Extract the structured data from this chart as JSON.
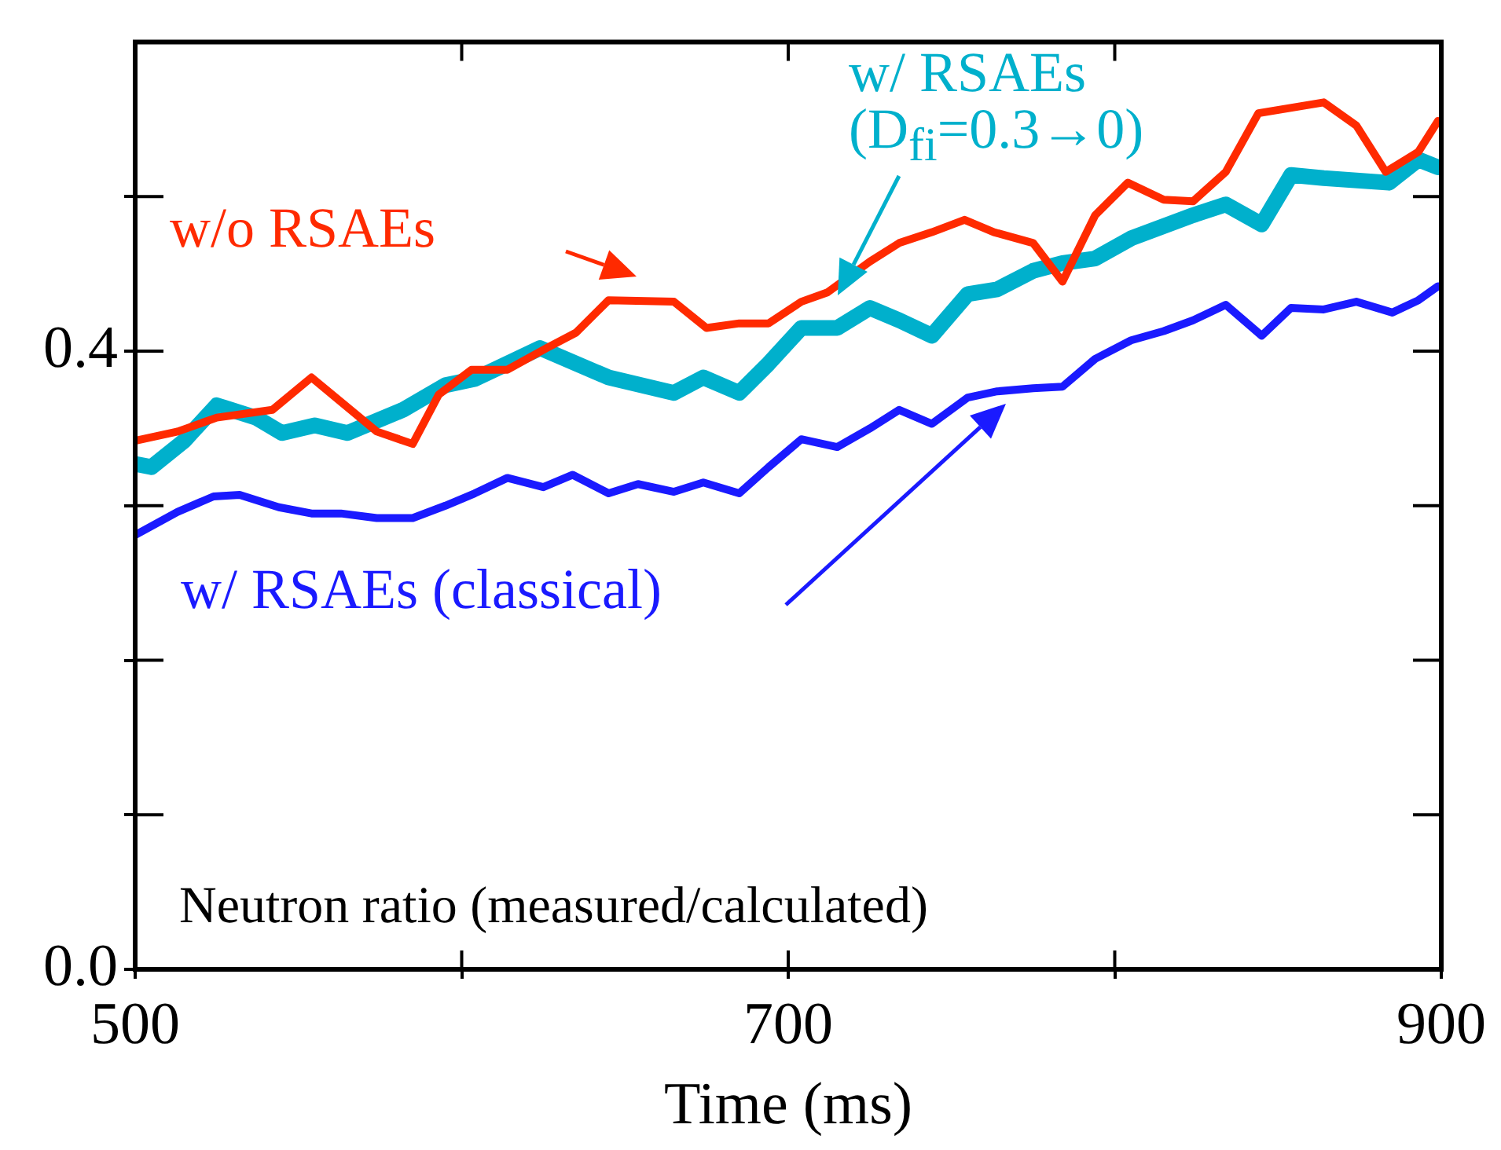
{
  "chart_data": {
    "type": "line",
    "xlabel": "Time (ms)",
    "annotations": [
      "Neutron ratio (measured/calculated)"
    ],
    "xlim": [
      500,
      900
    ],
    "ylim": [
      0,
      0.6
    ],
    "xticks": [
      500,
      {
        "value": 600,
        "label": null
      },
      700,
      {
        "value": 800,
        "label": null
      },
      900
    ],
    "yticks": [
      {
        "value": 0,
        "label": "0.0"
      },
      {
        "value": 0.1,
        "label": null
      },
      {
        "value": 0.2,
        "label": null
      },
      {
        "value": 0.3,
        "label": null
      },
      0.4,
      {
        "value": 0.5,
        "label": null
      }
    ],
    "grid": false,
    "legend": false,
    "marker": "none",
    "line_style": "solid",
    "series": [
      {
        "name": "w/o RSAEs",
        "color": "#ff2a00",
        "x": [
          500,
          513,
          525,
          542,
          554,
          574,
          585,
          593,
          603,
          614,
          626,
          635,
          645,
          665,
          675,
          685,
          694,
          704,
          712,
          725,
          734,
          744,
          754,
          763,
          775,
          784,
          794,
          804,
          815,
          824,
          834,
          844,
          864,
          874,
          883,
          893,
          899
        ],
        "values": [
          0.342,
          0.348,
          0.357,
          0.362,
          0.383,
          0.348,
          0.34,
          0.372,
          0.388,
          0.388,
          0.402,
          0.412,
          0.433,
          0.432,
          0.415,
          0.418,
          0.418,
          0.432,
          0.438,
          0.458,
          0.47,
          0.477,
          0.485,
          0.477,
          0.47,
          0.445,
          0.488,
          0.509,
          0.498,
          0.497,
          0.516,
          0.554,
          0.561,
          0.546,
          0.516,
          0.529,
          0.549
        ]
      },
      {
        "name": "w/ RSAEs (D$_{fi}$=0.3→0)",
        "color": "#00b0cc",
        "x": [
          500,
          505,
          515,
          525,
          537,
          545,
          555,
          565,
          582,
          595,
          604,
          624,
          645,
          665,
          674,
          685,
          694,
          704,
          715,
          725,
          734,
          744,
          755,
          764,
          775,
          784,
          794,
          805,
          824,
          834,
          845,
          854,
          864,
          884,
          893,
          899
        ],
        "values": [
          0.327,
          0.325,
          0.342,
          0.365,
          0.357,
          0.347,
          0.352,
          0.347,
          0.362,
          0.378,
          0.382,
          0.402,
          0.383,
          0.373,
          0.383,
          0.373,
          0.392,
          0.415,
          0.415,
          0.428,
          0.42,
          0.41,
          0.437,
          0.44,
          0.452,
          0.457,
          0.46,
          0.473,
          0.488,
          0.495,
          0.482,
          0.514,
          0.512,
          0.509,
          0.524,
          0.519
        ]
      },
      {
        "name": "w/ RSAEs (classical)",
        "color": "#1a1aff",
        "x": [
          500,
          513,
          524,
          532,
          544,
          554,
          563,
          574,
          585,
          595,
          604,
          614,
          625,
          634,
          645,
          654,
          665,
          674,
          685,
          694,
          704,
          715,
          725,
          734,
          744,
          755,
          764,
          775,
          784,
          794,
          805,
          815,
          824,
          834,
          845,
          854,
          864,
          874,
          885,
          893,
          899
        ],
        "values": [
          0.281,
          0.296,
          0.306,
          0.307,
          0.299,
          0.295,
          0.295,
          0.292,
          0.292,
          0.3,
          0.308,
          0.318,
          0.312,
          0.32,
          0.308,
          0.314,
          0.309,
          0.315,
          0.308,
          0.325,
          0.343,
          0.338,
          0.35,
          0.362,
          0.353,
          0.37,
          0.374,
          0.376,
          0.377,
          0.395,
          0.407,
          0.413,
          0.42,
          0.43,
          0.41,
          0.428,
          0.427,
          0.432,
          0.425,
          0.433,
          0.442
        ]
      }
    ]
  }
}
